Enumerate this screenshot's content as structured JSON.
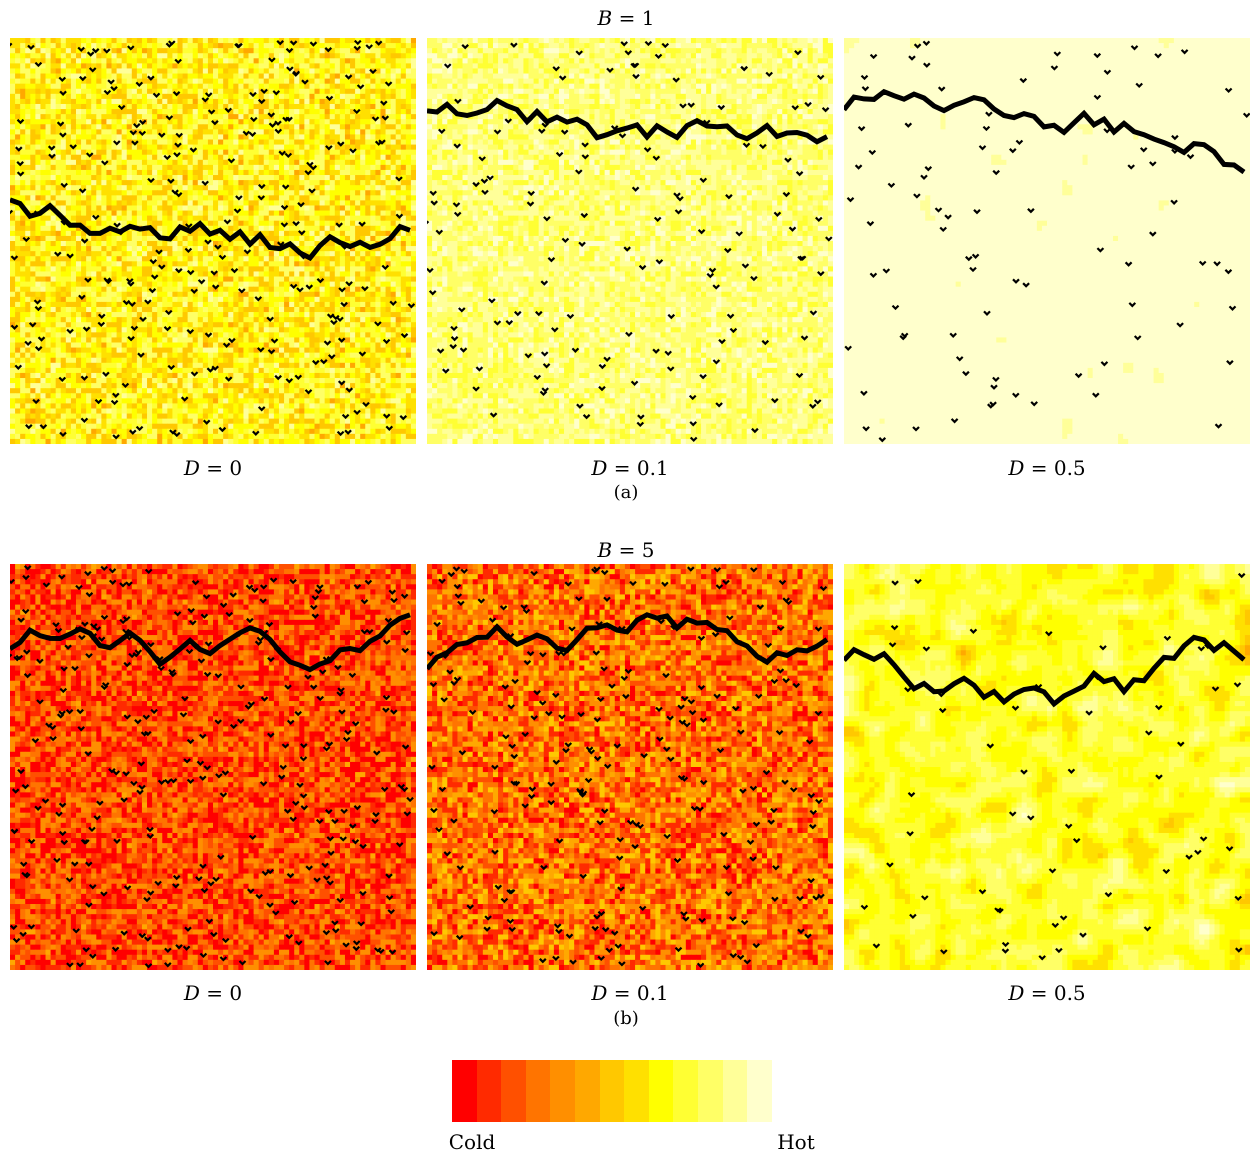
{
  "figure_a": {
    "header": {
      "var": "B",
      "val": "= 1"
    },
    "caption": "(a)",
    "panels": [
      {
        "var": "D",
        "val": "= 0",
        "seed": 11,
        "style": "a0"
      },
      {
        "var": "D",
        "val": "= 0.1",
        "seed": 23,
        "style": "a1"
      },
      {
        "var": "D",
        "val": "= 0.5",
        "seed": 37,
        "style": "a2"
      }
    ]
  },
  "figure_b": {
    "header": {
      "var": "B",
      "val": "= 5"
    },
    "caption": "(b)",
    "panels": [
      {
        "var": "D",
        "val": "= 0",
        "seed": 41,
        "style": "b0"
      },
      {
        "var": "D",
        "val": "= 0.1",
        "seed": 53,
        "style": "b1"
      },
      {
        "var": "D",
        "val": "= 0.5",
        "seed": 67,
        "style": "b2"
      }
    ]
  },
  "colorbar": {
    "low_label": "Cold",
    "high_label": "Hot",
    "colors": [
      "#ff0000",
      "#ff2a00",
      "#ff5000",
      "#ff7400",
      "#ff8f00",
      "#ffa800",
      "#ffc800",
      "#ffe000",
      "#ffff00",
      "#ffff33",
      "#ffff66",
      "#ffff99",
      "#ffffcc"
    ]
  }
}
